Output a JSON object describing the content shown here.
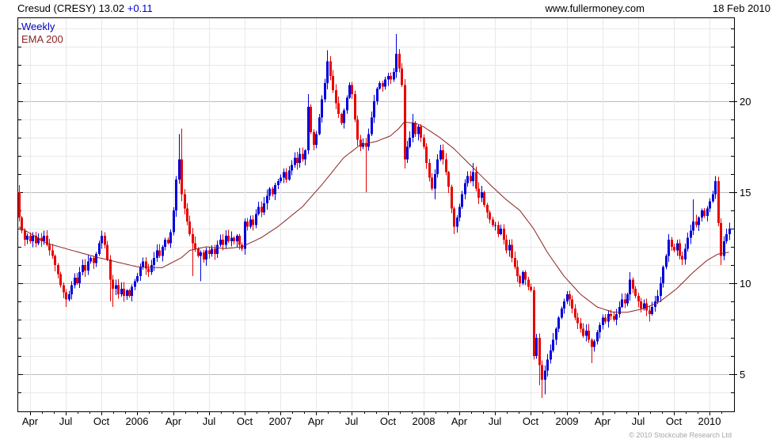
{
  "header": {
    "title_left": "Cresud (CRESY) 13.02",
    "title_change": "+0.11",
    "site": "www.fullermoney.com",
    "date": "18 Feb 2010"
  },
  "legend": {
    "series1": "Weekly",
    "series2": "EMA 200"
  },
  "footer": {
    "copyright": "© 2010 Stockcube Research Ltd"
  },
  "colors": {
    "up_candle": "#0000dd",
    "down_candle": "#e80000",
    "ema_line": "#8b2323",
    "grid_minor": "#e8e8e8",
    "grid_major": "#bdbdbd",
    "axis": "#000000",
    "change_text": "#0000cc",
    "legend_weekly": "#0000cc",
    "watermark_text": "#a6a6a6"
  },
  "chart_data": {
    "type": "candlestick",
    "title": "Cresud (CRESY) weekly candlesticks with 200-period EMA, Mar 2005 - Feb 2010",
    "legend_entries": [
      "Weekly",
      "EMA 200"
    ],
    "y_axis": {
      "tick_labels": [
        20,
        15,
        10,
        5
      ],
      "minor_step": 1,
      "range": [
        3.0,
        24.6
      ],
      "grid": true,
      "side": "right"
    },
    "x_axis": {
      "tick_labels": [
        "Apr",
        "Jul",
        "Oct",
        "2006",
        "Apr",
        "Jul",
        "Oct",
        "2007",
        "Apr",
        "Jul",
        "Oct",
        "2008",
        "Apr",
        "Jul",
        "Oct",
        "2009",
        "Apr",
        "Jul",
        "Oct",
        "2010"
      ],
      "tick_week_indices": [
        4,
        17,
        30,
        43,
        56,
        69,
        82,
        95,
        108,
        121,
        134,
        147,
        160,
        173,
        186,
        199,
        212,
        225,
        238,
        251
      ],
      "weeks_per_month": 4.3333,
      "first_month_week_index": 4
    },
    "series": {
      "weekly_candles": {
        "first_open": 15.0,
        "closes": [
          13.6,
          12.9,
          12.4,
          12.6,
          12.3,
          12.6,
          12.2,
          12.5,
          12.3,
          12.6,
          12.1,
          11.8,
          11.5,
          11.0,
          10.5,
          9.9,
          9.5,
          9.1,
          9.4,
          9.9,
          10.3,
          10.0,
          10.6,
          11.0,
          10.7,
          11.2,
          11.4,
          11.1,
          11.6,
          12.2,
          12.6,
          12.1,
          11.3,
          10.2,
          9.7,
          9.9,
          9.4,
          9.7,
          9.3,
          9.6,
          9.3,
          9.8,
          10.1,
          10.4,
          10.9,
          11.2,
          10.8,
          10.6,
          11.0,
          11.4,
          11.8,
          11.5,
          12.0,
          12.4,
          12.2,
          12.8,
          14.0,
          15.7,
          16.8,
          14.9,
          14.1,
          13.4,
          12.7,
          12.2,
          11.9,
          11.5,
          11.7,
          11.3,
          11.8,
          11.6,
          11.9,
          11.6,
          12.1,
          12.4,
          12.1,
          12.6,
          12.3,
          12.5,
          12.3,
          12.6,
          12.1,
          11.9,
          13.4,
          13.1,
          13.5,
          13.2,
          13.8,
          14.2,
          13.9,
          14.4,
          14.8,
          15.2,
          14.9,
          15.4,
          15.6,
          15.8,
          16.1,
          15.7,
          16.2,
          16.5,
          16.9,
          16.6,
          17.1,
          16.8,
          17.3,
          19.7,
          18.3,
          17.6,
          18.2,
          19.1,
          20.1,
          21.0,
          22.2,
          21.4,
          20.6,
          19.9,
          19.3,
          18.8,
          19.5,
          20.2,
          20.9,
          20.4,
          19.0,
          17.9,
          17.5,
          17.7,
          17.5,
          18.2,
          19.1,
          20.0,
          20.7,
          21.0,
          20.8,
          21.2,
          21.4,
          21.2,
          21.6,
          22.6,
          21.8,
          20.9,
          16.8,
          17.5,
          18.0,
          18.8,
          18.2,
          18.6,
          18.0,
          17.5,
          16.6,
          15.8,
          15.2,
          16.0,
          16.8,
          17.3,
          16.8,
          16.1,
          15.3,
          14.1,
          13.1,
          13.6,
          14.2,
          14.9,
          15.5,
          15.9,
          15.6,
          16.1,
          15.2,
          14.7,
          15.0,
          14.3,
          13.9,
          13.5,
          13.2,
          13.2,
          12.7,
          13.0,
          12.4,
          11.8,
          12.1,
          11.4,
          10.9,
          10.4,
          10.0,
          10.6,
          10.2,
          9.8,
          9.6,
          6.0,
          7.0,
          5.5,
          4.7,
          5.2,
          5.8,
          6.3,
          6.9,
          7.5,
          8.1,
          8.6,
          9.0,
          9.4,
          9.1,
          8.6,
          8.1,
          7.8,
          7.5,
          7.1,
          7.4,
          6.9,
          6.5,
          6.8,
          7.3,
          7.7,
          8.1,
          7.9,
          8.3,
          8.2,
          8.0,
          8.3,
          8.7,
          9.1,
          8.9,
          9.4,
          10.2,
          9.7,
          9.3,
          9.0,
          8.6,
          8.9,
          8.5,
          8.3,
          8.7,
          9.0,
          9.3,
          10.0,
          10.9,
          11.5,
          12.4,
          12.0,
          11.8,
          12.2,
          11.5,
          11.3,
          11.9,
          12.5,
          12.9,
          13.4,
          13.2,
          13.6,
          14.0,
          13.7,
          14.1,
          14.5,
          14.9,
          15.6,
          13.3,
          11.5,
          12.3,
          12.7,
          13.0
        ],
        "wick_overrides": {
          "0": [
            13.4,
            15.4
          ],
          "17": [
            8.7,
            null
          ],
          "30": [
            null,
            12.9
          ],
          "33": [
            9.0,
            null
          ],
          "34": [
            8.7,
            null
          ],
          "58": [
            null,
            18.2
          ],
          "59": [
            14.5,
            18.5
          ],
          "63": [
            10.4,
            null
          ],
          "66": [
            10.1,
            null
          ],
          "105": [
            null,
            20.4
          ],
          "112": [
            null,
            22.8
          ],
          "126": [
            15.0,
            null
          ],
          "137": [
            null,
            23.7
          ],
          "140": [
            16.3,
            null
          ],
          "143": [
            null,
            19.3
          ],
          "151": [
            14.6,
            null
          ],
          "158": [
            12.7,
            null
          ],
          "165": [
            null,
            16.6
          ],
          "187": [
            5.8,
            null
          ],
          "189": [
            4.4,
            null
          ],
          "190": [
            3.7,
            null
          ],
          "191": [
            3.9,
            null
          ],
          "208": [
            5.6,
            null
          ],
          "222": [
            null,
            10.6
          ],
          "229": [
            7.9,
            null
          ],
          "236": [
            null,
            12.7
          ],
          "241": [
            11.0,
            null
          ],
          "245": [
            null,
            14.6
          ],
          "253": [
            null,
            15.9
          ],
          "255": [
            11.0,
            null
          ]
        }
      },
      "ema_200": {
        "anchors": [
          [
            0,
            13.1
          ],
          [
            10,
            12.2
          ],
          [
            17,
            11.9
          ],
          [
            29,
            11.4
          ],
          [
            43,
            10.9
          ],
          [
            52,
            10.85
          ],
          [
            59,
            11.4
          ],
          [
            62,
            11.8
          ],
          [
            68,
            12.0
          ],
          [
            75,
            11.9
          ],
          [
            81,
            12.0
          ],
          [
            88,
            12.5
          ],
          [
            94,
            13.1
          ],
          [
            103,
            14.2
          ],
          [
            110,
            15.4
          ],
          [
            118,
            16.9
          ],
          [
            124,
            17.6
          ],
          [
            130,
            17.8
          ],
          [
            135,
            18.1
          ],
          [
            138,
            18.5
          ],
          [
            140,
            18.85
          ],
          [
            144,
            18.8
          ],
          [
            147,
            18.6
          ],
          [
            153,
            18.0
          ],
          [
            158,
            17.4
          ],
          [
            166,
            16.2
          ],
          [
            172,
            15.3
          ],
          [
            177,
            14.6
          ],
          [
            182,
            14.0
          ],
          [
            187,
            13.0
          ],
          [
            192,
            11.7
          ],
          [
            198,
            10.4
          ],
          [
            204,
            9.4
          ],
          [
            210,
            8.7
          ],
          [
            216,
            8.4
          ],
          [
            221,
            8.4
          ],
          [
            227,
            8.6
          ],
          [
            233,
            9.0
          ],
          [
            239,
            9.7
          ],
          [
            245,
            10.6
          ],
          [
            250,
            11.25
          ],
          [
            254,
            11.6
          ],
          [
            258,
            11.7
          ]
        ]
      }
    }
  }
}
